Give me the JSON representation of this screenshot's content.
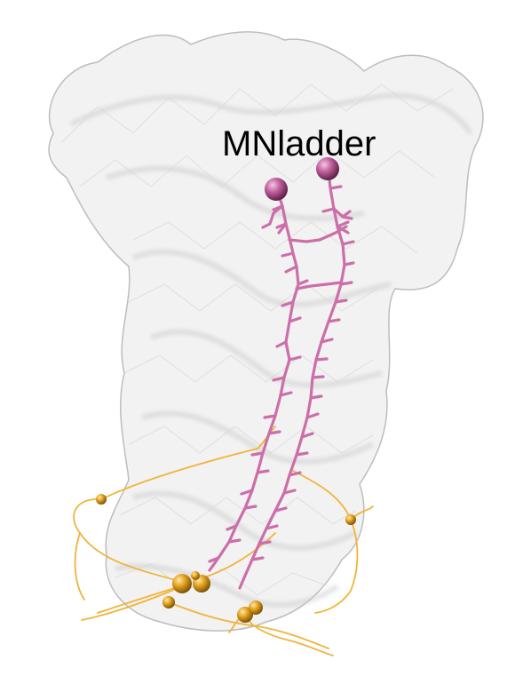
{
  "label": "MNladder",
  "colors": {
    "background": "#ffffff",
    "mesh_fill": "#e6e6e6",
    "mesh_edge": "#b5b5b5",
    "magenta_neuron": "#cc6ea8",
    "magenta_soma": "#b0508c",
    "orange_neuron": "#f0b43a",
    "orange_soma": "#d99a14"
  }
}
